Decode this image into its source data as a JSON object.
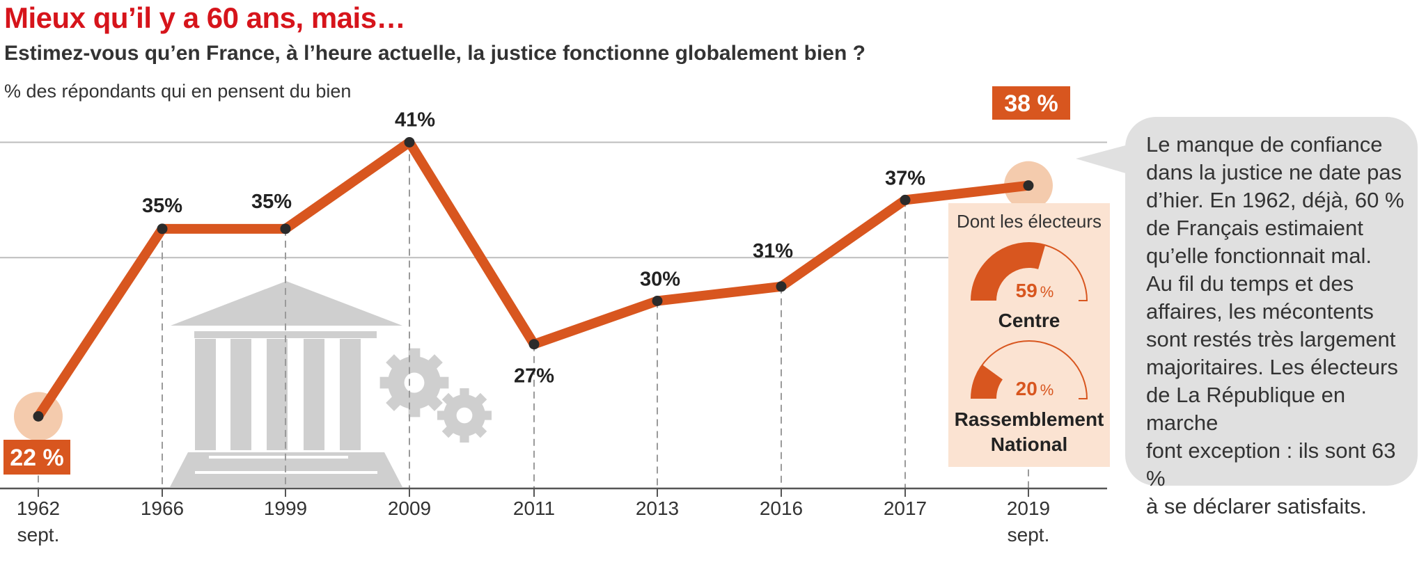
{
  "chart_data": {
    "type": "line",
    "title": "Mieux qu’il y a 60 ans, mais…",
    "subtitle": "Estimez-vous qu’en France, à l’heure actuelle, la justice fonctionne globalement bien ?",
    "ylabel": "% des répondants qui en pensent du bien",
    "categories": [
      "1962\nsept.",
      "1966",
      "1999",
      "2009",
      "2011",
      "2013",
      "2016",
      "2017",
      "2019\nsept."
    ],
    "values": [
      22,
      35,
      35,
      41,
      27,
      30,
      31,
      37,
      38
    ],
    "value_labels": [
      "22 %",
      "35%",
      "35%",
      "41%",
      "27%",
      "30%",
      "31%",
      "37%",
      "38 %"
    ],
    "highlighted_points": [
      0,
      8
    ],
    "ylim": [
      17,
      43
    ],
    "gridlines": [
      33,
      41
    ],
    "line_color": "#d8561f",
    "highlight_box_color": "#d8561f",
    "halo_color": "#f4cbad",
    "grid": true,
    "inset": {
      "title": "Dont les électeurs",
      "background": "#fbe3d2",
      "gauges": [
        {
          "label": "Centre",
          "value": 59,
          "value_text": "59",
          "unit": "%"
        },
        {
          "label": "Rassemblement National",
          "label_lines": [
            "Rassemblement",
            "National"
          ],
          "value": 20,
          "value_text": "20",
          "unit": "%"
        }
      ]
    },
    "annotation": {
      "lines": [
        "Le manque de confiance",
        "dans la justice ne date pas",
        "d’hier. En 1962, déjà, 60 %",
        "de Français estimaient",
        "qu’elle fonctionnait mal.",
        "Au fil du temps et des",
        "affaires, les mécontents",
        "sont restés très largement",
        "majoritaires. Les électeurs",
        "de La République en marche",
        "font exception : ils sont 63 %",
        "à se déclarer satisfaits."
      ],
      "background": "#e0e0e0"
    },
    "decorations": [
      "courthouse-icon",
      "gears-icon"
    ]
  }
}
